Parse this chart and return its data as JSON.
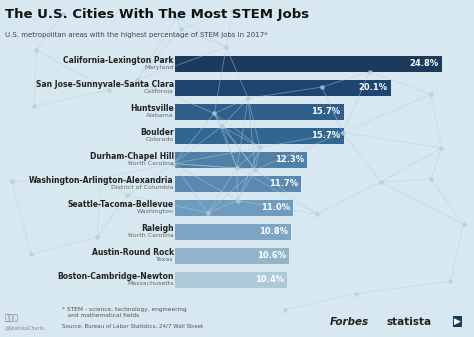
{
  "title": "The U.S. Cities With The Most STEM Jobs",
  "subtitle": "U.S. metropolitan areas with the highest percentage of STEM jobs in 2017*",
  "cities": [
    "California-Lexington Park",
    "San Jose-Sunnyvale-Santa Clara",
    "Huntsville",
    "Boulder",
    "Durham-Chapel Hill",
    "Washington-Arlington-Alexandria",
    "Seattle-Tacoma-Bellevue",
    "Raleigh",
    "Austin-Round Rock",
    "Boston-Cambridge-Newton"
  ],
  "states": [
    "Maryland",
    "California",
    "Alabama",
    "Colorado",
    "North Carolina",
    "District of Columbia",
    "Washington",
    "North Carolina",
    "Texas",
    "Massachusetts"
  ],
  "values": [
    24.8,
    20.1,
    15.7,
    15.7,
    12.3,
    11.7,
    11.0,
    10.8,
    10.6,
    10.4
  ],
  "bar_colors": [
    "#1b3a5c",
    "#1e4570",
    "#2d5f8a",
    "#316592",
    "#5080a8",
    "#5a88b0",
    "#6e9bbf",
    "#7fa5c5",
    "#94b4cc",
    "#afc8d8"
  ],
  "bg_color": "#d8e8f0",
  "title_color": "#111111",
  "subtitle_color": "#444444",
  "city_color": "#222222",
  "state_color": "#666666",
  "value_color": "#ffffff",
  "footer_color": "#555555",
  "footer_note": "* STEM - science, technology, engineering\n   and mathematical fields",
  "source": "Source: Bureau of Labor Statistics, 24/7 Wall Street",
  "xlim_max": 26.5
}
